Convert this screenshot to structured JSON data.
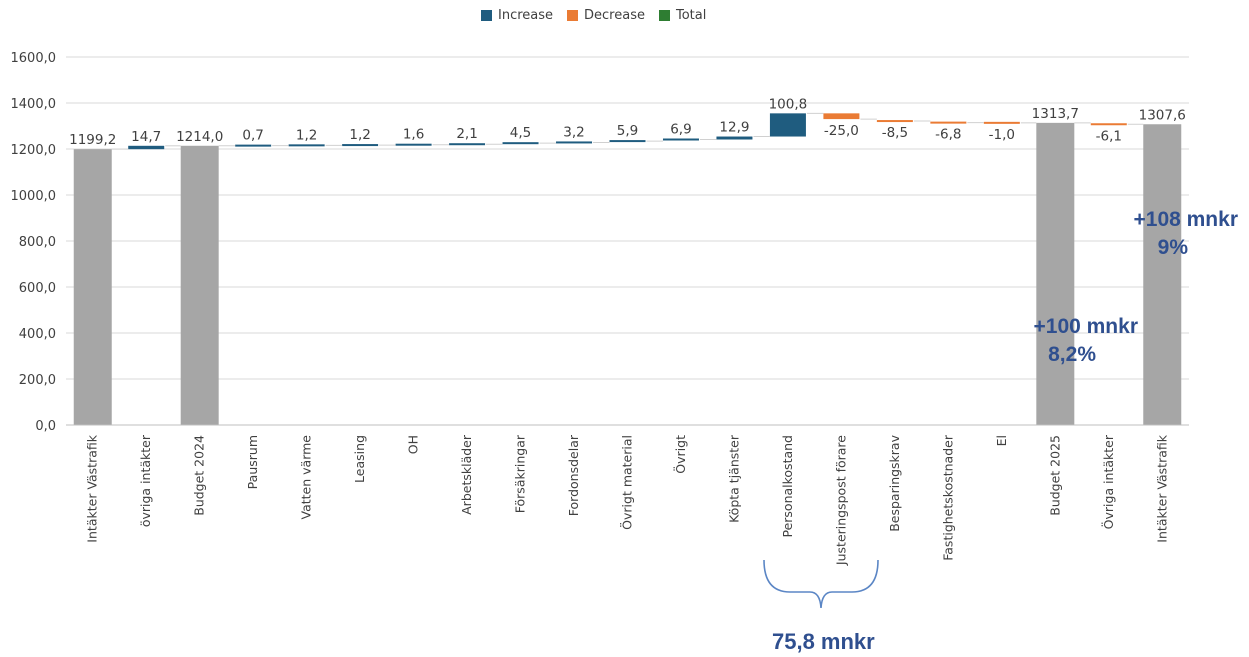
{
  "legend": [
    {
      "label": "Increase",
      "color": "#1f5c7f"
    },
    {
      "label": "Decrease",
      "color": "#ea7b34"
    },
    {
      "label": "Total",
      "color": "#2e7d32"
    }
  ],
  "colors": {
    "total_bar": "#a6a6a6",
    "increase": "#1f5c7f",
    "decrease": "#ea7b34",
    "grid": "#d9d9d9",
    "callout": "#2f4f8f"
  },
  "chart_data": {
    "type": "bar",
    "subtype": "waterfall",
    "title": "",
    "xlabel": "",
    "ylabel": "",
    "ylim": [
      0,
      1600
    ],
    "yticks": [
      "0,0",
      "200,0",
      "400,0",
      "600,0",
      "800,0",
      "1000,0",
      "1200,0",
      "1400,0",
      "1600,0"
    ],
    "grid": true,
    "legend_position": "top-center",
    "categories": [
      "Intäkter Västrafik",
      "övriga intäkter",
      "Budget 2024",
      "Pausrum",
      "Vatten värme",
      "Leasing",
      "OH",
      "Arbetskläder",
      "Försäkringar",
      "Fordonsdelar",
      "Övrigt material",
      "Övrigt",
      "Köpta tjänster",
      "Personalkostand",
      "Justeringspost förare",
      "Besparingskrav",
      "Fastighetskostnader",
      "El",
      "Budget 2025",
      "Övriga intäkter",
      "Intäkter Västrafik"
    ],
    "values": [
      1199.2,
      14.7,
      1214.0,
      0.7,
      1.2,
      1.2,
      1.6,
      2.1,
      4.5,
      3.2,
      5.9,
      6.9,
      12.9,
      100.8,
      -25.0,
      -8.5,
      -6.8,
      -1.0,
      1313.7,
      -6.1,
      1307.6
    ],
    "kinds": [
      "total",
      "increase",
      "total",
      "increase",
      "increase",
      "increase",
      "increase",
      "increase",
      "increase",
      "increase",
      "increase",
      "increase",
      "increase",
      "increase",
      "decrease",
      "decrease",
      "decrease",
      "decrease",
      "total",
      "decrease",
      "total"
    ],
    "data_labels": [
      "1199,2",
      "14,7",
      "1214,0",
      "0,7",
      "1,2",
      "1,2",
      "1,6",
      "2,1",
      "4,5",
      "3,2",
      "5,9",
      "6,9",
      "12,9",
      "100,8",
      "-25,0",
      "-8,5",
      "-6,8",
      "-1,0",
      "1313,7",
      "-6,1",
      "1307,6"
    ]
  },
  "annotations": {
    "a1_line1": "+108 mnkr",
    "a1_line2": "9%",
    "a2_line1": "+100 mnkr",
    "a2_line2": "8,2%",
    "a3": "75,8 mnkr"
  }
}
